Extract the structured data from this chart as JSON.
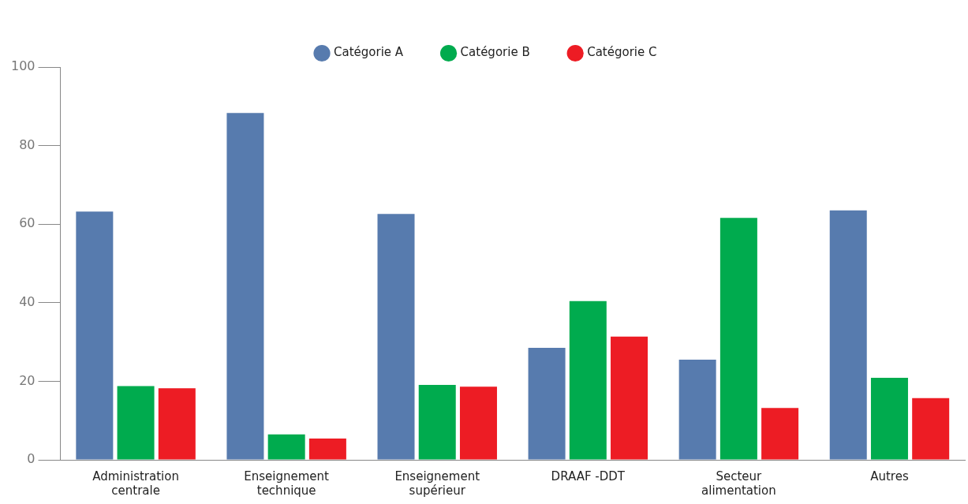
{
  "chart_data": {
    "type": "bar",
    "categories": [
      "Administration centrale",
      "Enseignement technique",
      "Enseignement supérieur",
      "DRAAF -DDT",
      "Secteur alimentation",
      "Autres"
    ],
    "series": [
      {
        "name": "Catégorie A",
        "color": "#577bae",
        "values": [
          63.2,
          88.3,
          62.6,
          28.5,
          25.5,
          63.5
        ]
      },
      {
        "name": "Catégorie B",
        "color": "#00ab4e",
        "values": [
          18.8,
          6.5,
          19.1,
          40.4,
          61.6,
          20.9
        ]
      },
      {
        "name": "Catégorie C",
        "color": "#ed1c24",
        "values": [
          18.2,
          5.4,
          18.6,
          31.4,
          13.2,
          15.7
        ]
      }
    ],
    "ylim": [
      0,
      100
    ],
    "yticks": [
      0,
      20,
      40,
      60,
      80,
      100
    ],
    "grid": false,
    "legend": "top"
  }
}
